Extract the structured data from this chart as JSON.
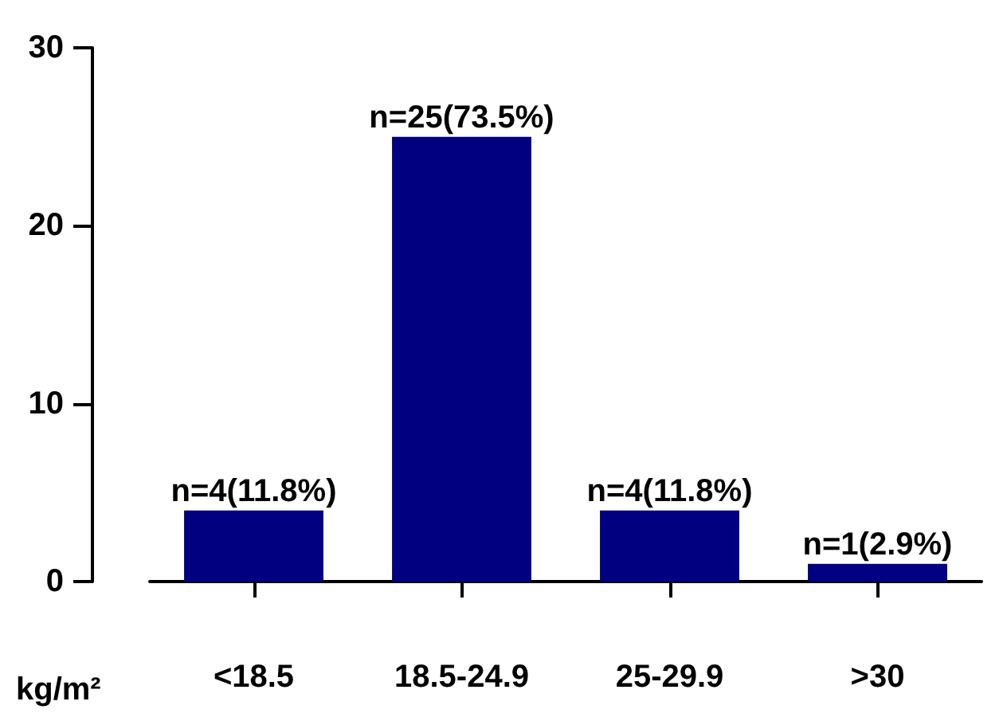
{
  "chart_data": {
    "type": "bar",
    "xlabel": "kg/m²",
    "categories": [
      "<18.5",
      "18.5-24.9",
      "25-29.9",
      ">30"
    ],
    "values": [
      4,
      25,
      4,
      1
    ],
    "color": "#000080",
    "value_labels": [
      "n=4(11.8%)",
      "n=25(73.5%)",
      "n=4(11.8%)",
      "n=1(2.9%)"
    ],
    "ylim": [
      0,
      30
    ],
    "yticks": [
      0,
      10,
      20,
      30
    ],
    "grid": false
  }
}
